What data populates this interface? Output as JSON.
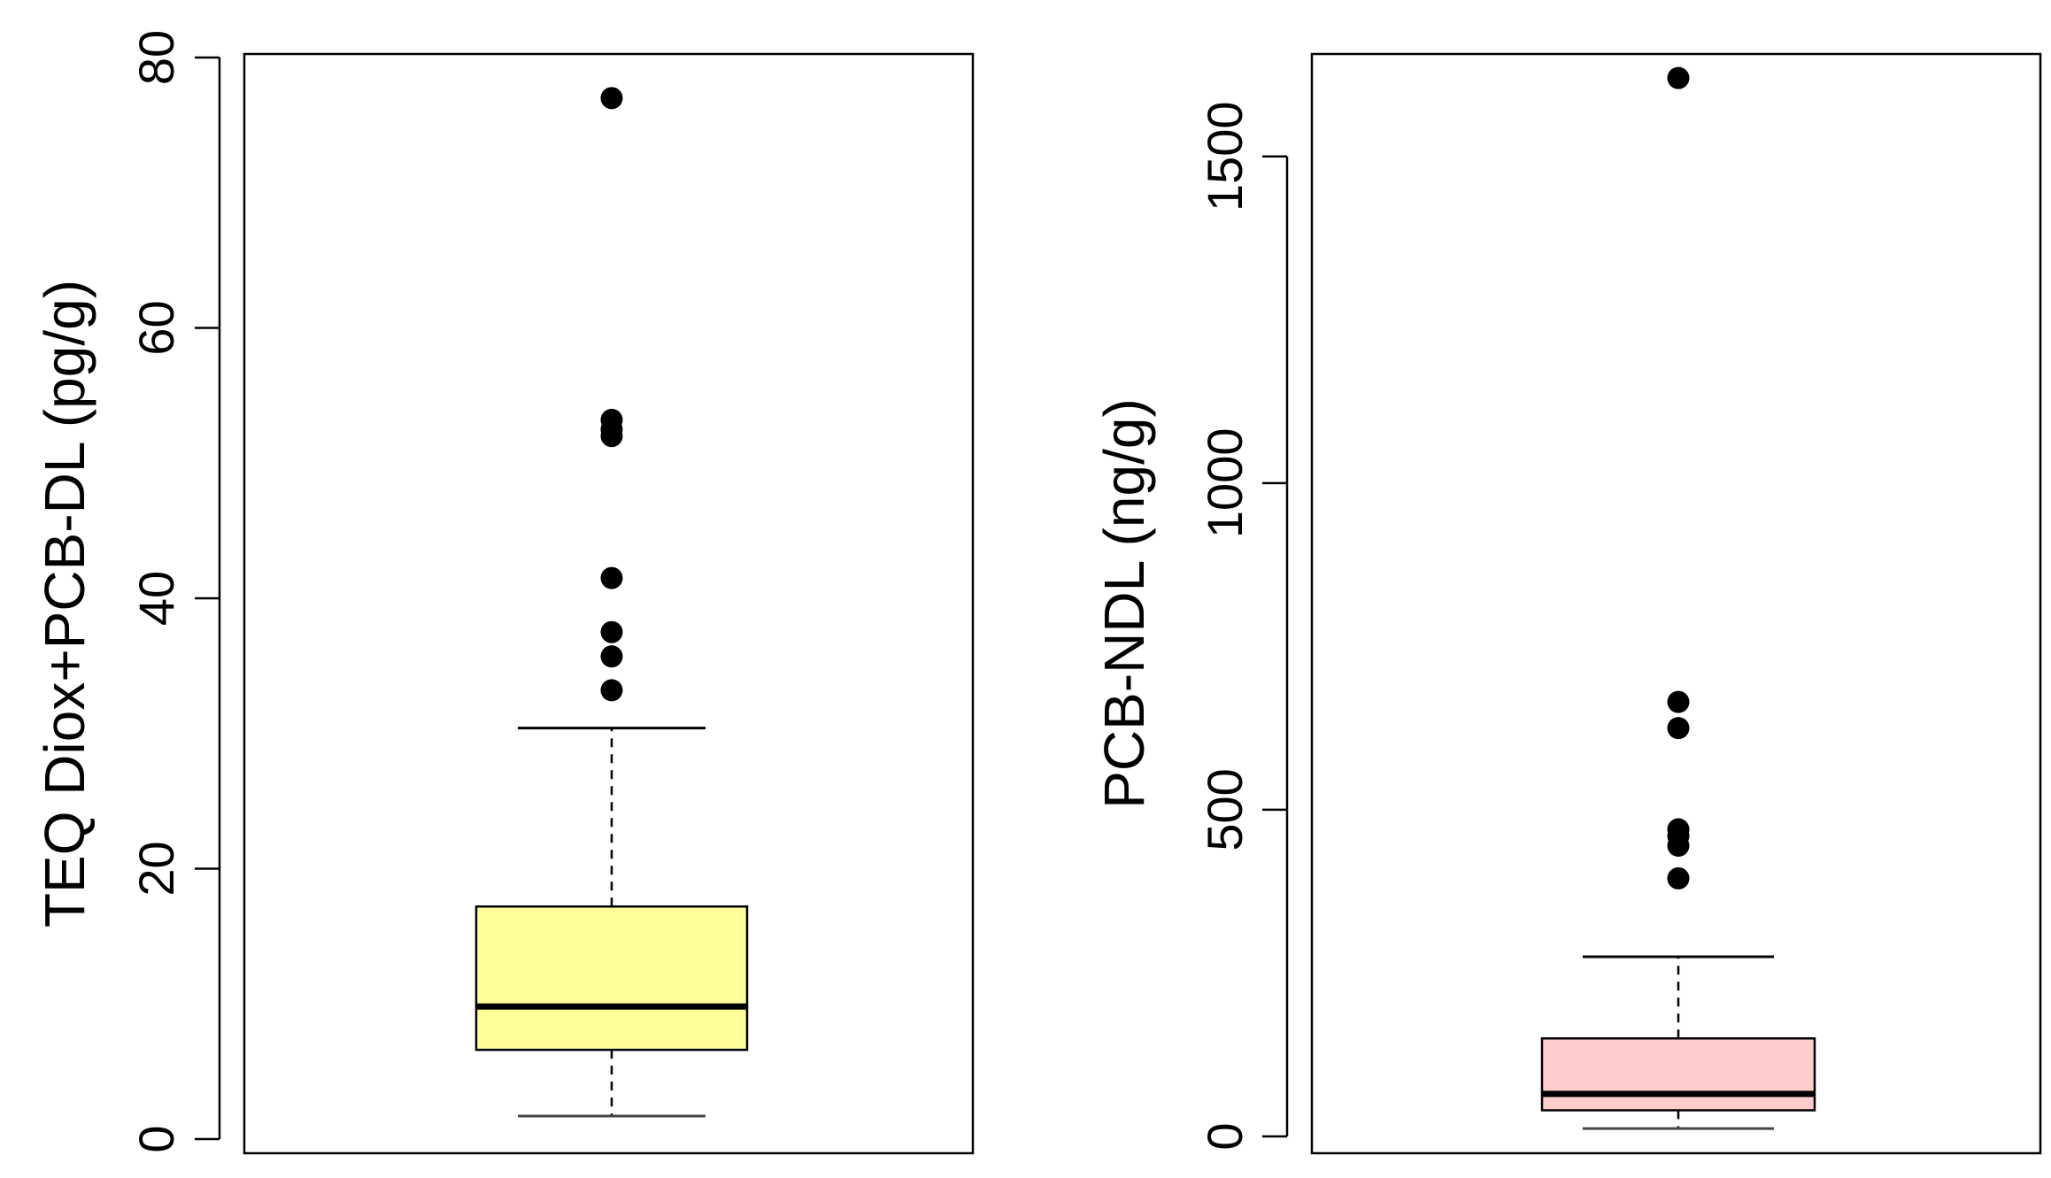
{
  "chart_data": [
    {
      "type": "boxplot",
      "title": "",
      "xlabel": "",
      "ylabel": "TEQ Diox+PCB-DL (pg/g)",
      "ylim": [
        0,
        80
      ],
      "yticks": [
        0,
        20,
        40,
        60,
        80
      ],
      "box_color": "#FFFF99",
      "box": {
        "whisker_low": 1.7,
        "q1": 6.6,
        "median": 9.8,
        "q3": 17.2,
        "whisker_high": 30.4
      },
      "outliers": [
        33.2,
        35.7,
        37.5,
        41.5,
        52.0,
        52.5,
        53.2,
        77.0
      ]
    },
    {
      "type": "boxplot",
      "title": "",
      "xlabel": "",
      "ylabel": "PCB-NDL (ng/g)",
      "ylim": [
        0,
        1650
      ],
      "yticks": [
        0,
        500,
        1000,
        1500
      ],
      "box_color": "#FFCCCC",
      "box": {
        "whisker_low": 12,
        "q1": 40,
        "median": 65,
        "q3": 150,
        "whisker_high": 275
      },
      "outliers": [
        395,
        445,
        460,
        470,
        625,
        665,
        1620
      ]
    }
  ]
}
